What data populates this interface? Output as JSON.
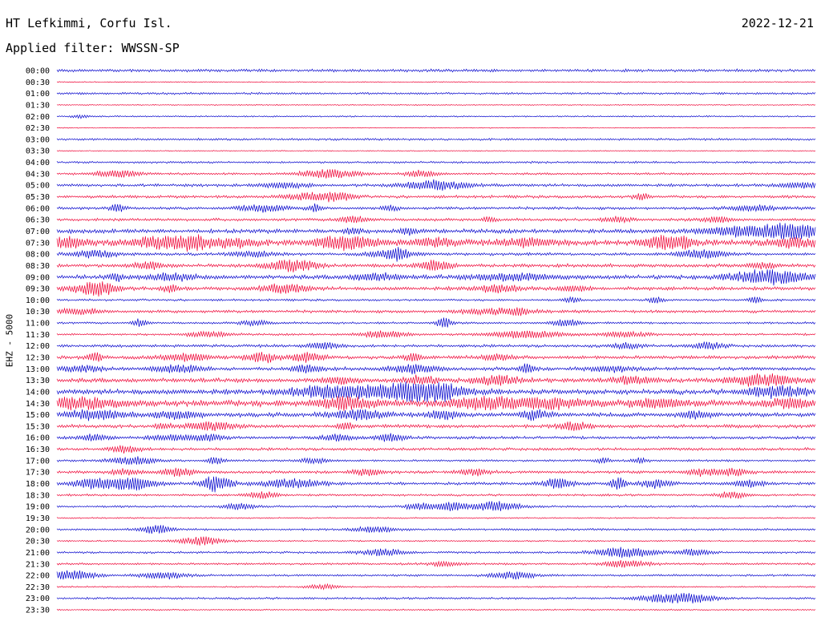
{
  "header": {
    "station": "HT Lefkimmi, Corfu Isl.",
    "date": "2022-12-21",
    "filter": "Applied filter: WWSSN-SP"
  },
  "chart_data": {
    "type": "line",
    "plot_kind": "helicorder",
    "channel_label": "EHZ - 5000",
    "row_colors": [
      "#0000cc",
      "#ee0033"
    ],
    "trace_times": [
      "00:00",
      "00:30",
      "01:00",
      "01:30",
      "02:00",
      "02:30",
      "03:00",
      "03:30",
      "04:00",
      "04:30",
      "05:00",
      "05:30",
      "06:00",
      "06:30",
      "07:00",
      "07:30",
      "08:00",
      "08:30",
      "09:00",
      "09:30",
      "10:00",
      "10:30",
      "11:00",
      "11:30",
      "12:00",
      "12:30",
      "13:00",
      "13:30",
      "14:00",
      "14:30",
      "15:00",
      "15:30",
      "16:00",
      "16:30",
      "17:00",
      "17:30",
      "18:00",
      "18:30",
      "19:00",
      "19:30",
      "20:00",
      "20:30",
      "21:00",
      "21:30",
      "22:00",
      "22:30",
      "23:00",
      "23:30"
    ],
    "noise_level": [
      2,
      0.6,
      1.5,
      0.7,
      1,
      0.6,
      1.5,
      0.6,
      1.5,
      1.5,
      2,
      2,
      2,
      2,
      3,
      4,
      2,
      2.5,
      3,
      2.5,
      1.5,
      2,
      1.5,
      1.5,
      2,
      2.5,
      2.5,
      3,
      3.5,
      4.5,
      3,
      2.5,
      2,
      2,
      1.5,
      2,
      2,
      1.5,
      1.5,
      1,
      1.5,
      1,
      1.5,
      1.5,
      1.5,
      1,
      1.5,
      1
    ],
    "events": [
      [],
      [],
      [],
      [],
      [
        [
          0.03,
          2,
          0.01
        ]
      ],
      [],
      [],
      [],
      [],
      [
        [
          0.08,
          4,
          0.03
        ],
        [
          0.36,
          5,
          0.04
        ],
        [
          0.48,
          4,
          0.02
        ]
      ],
      [
        [
          0.3,
          3,
          0.03
        ],
        [
          0.5,
          6,
          0.04
        ],
        [
          0.98,
          3,
          0.03
        ]
      ],
      [
        [
          0.33,
          4,
          0.03
        ],
        [
          0.37,
          5,
          0.02
        ],
        [
          0.77,
          4,
          0.01
        ]
      ],
      [
        [
          0.08,
          5,
          0.01
        ],
        [
          0.27,
          4,
          0.03
        ],
        [
          0.34,
          4,
          0.01
        ],
        [
          0.44,
          3,
          0.01
        ],
        [
          0.92,
          3,
          0.03
        ]
      ],
      [
        [
          0.39,
          4,
          0.02
        ],
        [
          0.57,
          3,
          0.01
        ],
        [
          0.74,
          3,
          0.02
        ],
        [
          0.87,
          3,
          0.02
        ]
      ],
      [
        [
          0.39,
          4,
          0.01
        ],
        [
          0.46,
          4,
          0.01
        ],
        [
          0.9,
          5,
          0.05
        ],
        [
          0.96,
          7,
          0.03
        ],
        [
          0.99,
          4,
          0.03
        ]
      ],
      [
        [
          0.01,
          5,
          0.03
        ],
        [
          0.14,
          6,
          0.04
        ],
        [
          0.18,
          6,
          0.02
        ],
        [
          0.23,
          5,
          0.03
        ],
        [
          0.38,
          7,
          0.04
        ],
        [
          0.5,
          4,
          0.03
        ],
        [
          0.62,
          5,
          0.03
        ],
        [
          0.79,
          6,
          0.02
        ],
        [
          0.82,
          7,
          0.02
        ],
        [
          0.97,
          5,
          0.03
        ]
      ],
      [
        [
          0.05,
          4,
          0.03
        ],
        [
          0.26,
          3,
          0.03
        ],
        [
          0.44,
          4,
          0.03
        ],
        [
          0.45,
          6,
          0.01
        ],
        [
          0.85,
          5,
          0.03
        ]
      ],
      [
        [
          0.12,
          4,
          0.02
        ],
        [
          0.31,
          7,
          0.03
        ],
        [
          0.5,
          6,
          0.02
        ],
        [
          0.93,
          3,
          0.02
        ]
      ],
      [
        [
          0.08,
          4,
          0.01
        ],
        [
          0.15,
          4,
          0.03
        ],
        [
          0.42,
          4,
          0.03
        ],
        [
          0.6,
          4,
          0.05
        ],
        [
          0.94,
          8,
          0.05
        ]
      ],
      [
        [
          0.04,
          4,
          0.03
        ],
        [
          0.06,
          6,
          0.02
        ],
        [
          0.15,
          4,
          0.01
        ],
        [
          0.3,
          5,
          0.03
        ],
        [
          0.58,
          4,
          0.03
        ],
        [
          0.68,
          3,
          0.02
        ]
      ],
      [
        [
          0.68,
          3,
          0.01
        ],
        [
          0.79,
          4,
          0.01
        ],
        [
          0.92,
          4,
          0.01
        ]
      ],
      [
        [
          0.03,
          3,
          0.03
        ],
        [
          0.58,
          3,
          0.05
        ],
        [
          0.61,
          3,
          0.01
        ]
      ],
      [
        [
          0.11,
          5,
          0.01
        ],
        [
          0.26,
          3,
          0.02
        ],
        [
          0.51,
          6,
          0.01
        ],
        [
          0.67,
          4,
          0.02
        ]
      ],
      [
        [
          0.2,
          3,
          0.03
        ],
        [
          0.43,
          4,
          0.03
        ],
        [
          0.62,
          4,
          0.05
        ],
        [
          0.75,
          3,
          0.03
        ]
      ],
      [
        [
          0.35,
          4,
          0.02
        ],
        [
          0.75,
          3,
          0.02
        ],
        [
          0.86,
          4,
          0.02
        ]
      ],
      [
        [
          0.05,
          6,
          0.01
        ],
        [
          0.17,
          4,
          0.03
        ],
        [
          0.27,
          6,
          0.02
        ],
        [
          0.33,
          5,
          0.02
        ],
        [
          0.47,
          5,
          0.01
        ],
        [
          0.58,
          3,
          0.02
        ]
      ],
      [
        [
          0.03,
          3,
          0.03
        ],
        [
          0.16,
          4,
          0.03
        ],
        [
          0.33,
          4,
          0.02
        ],
        [
          0.47,
          5,
          0.03
        ],
        [
          0.62,
          6,
          0.01
        ],
        [
          0.73,
          3,
          0.03
        ]
      ],
      [
        [
          0.37,
          4,
          0.02
        ],
        [
          0.48,
          5,
          0.02
        ],
        [
          0.58,
          5,
          0.03
        ],
        [
          0.76,
          4,
          0.03
        ],
        [
          0.93,
          7,
          0.04
        ]
      ],
      [
        [
          0.36,
          7,
          0.05
        ],
        [
          0.47,
          12,
          0.06
        ],
        [
          0.5,
          6,
          0.02
        ],
        [
          0.95,
          6,
          0.04
        ]
      ],
      [
        [
          0.03,
          5,
          0.05
        ],
        [
          0.38,
          6,
          0.04
        ],
        [
          0.55,
          5,
          0.04
        ],
        [
          0.63,
          6,
          0.06
        ],
        [
          0.79,
          5,
          0.03
        ],
        [
          0.97,
          5,
          0.03
        ]
      ],
      [
        [
          0.05,
          5,
          0.04
        ],
        [
          0.16,
          4,
          0.03
        ],
        [
          0.4,
          5,
          0.04
        ],
        [
          0.51,
          5,
          0.02
        ],
        [
          0.63,
          5,
          0.02
        ],
        [
          0.84,
          4,
          0.02
        ]
      ],
      [
        [
          0.14,
          3,
          0.01
        ],
        [
          0.2,
          5,
          0.03
        ],
        [
          0.38,
          4,
          0.01
        ],
        [
          0.68,
          5,
          0.02
        ]
      ],
      [
        [
          0.05,
          4,
          0.02
        ],
        [
          0.15,
          3,
          0.03
        ],
        [
          0.2,
          4,
          0.02
        ],
        [
          0.37,
          4,
          0.02
        ],
        [
          0.44,
          4,
          0.02
        ]
      ],
      [
        [
          0.09,
          4,
          0.02
        ]
      ],
      [
        [
          0.1,
          5,
          0.03
        ],
        [
          0.21,
          5,
          0.01
        ],
        [
          0.34,
          3,
          0.02
        ],
        [
          0.72,
          3,
          0.01
        ],
        [
          0.77,
          3,
          0.01
        ]
      ],
      [
        [
          0.09,
          3,
          0.02
        ],
        [
          0.16,
          5,
          0.02
        ],
        [
          0.41,
          4,
          0.02
        ],
        [
          0.55,
          4,
          0.02
        ],
        [
          0.85,
          4,
          0.02
        ],
        [
          0.89,
          4,
          0.02
        ]
      ],
      [
        [
          0.05,
          6,
          0.03
        ],
        [
          0.1,
          7,
          0.03
        ],
        [
          0.21,
          10,
          0.02
        ],
        [
          0.31,
          5,
          0.04
        ],
        [
          0.66,
          6,
          0.02
        ],
        [
          0.74,
          7,
          0.01
        ],
        [
          0.79,
          5,
          0.02
        ],
        [
          0.91,
          4,
          0.02
        ]
      ],
      [
        [
          0.27,
          4,
          0.02
        ],
        [
          0.89,
          4,
          0.02
        ]
      ],
      [
        [
          0.24,
          4,
          0.02
        ],
        [
          0.48,
          4,
          0.02
        ],
        [
          0.52,
          5,
          0.02
        ],
        [
          0.58,
          6,
          0.03
        ]
      ],
      [],
      [
        [
          0.13,
          5,
          0.02
        ],
        [
          0.42,
          3,
          0.03
        ]
      ],
      [
        [
          0.19,
          5,
          0.03
        ]
      ],
      [
        [
          0.43,
          4,
          0.03
        ],
        [
          0.75,
          6,
          0.04
        ],
        [
          0.84,
          4,
          0.02
        ]
      ],
      [
        [
          0.51,
          3,
          0.02
        ],
        [
          0.75,
          4,
          0.03
        ]
      ],
      [
        [
          0.02,
          6,
          0.03
        ],
        [
          0.14,
          4,
          0.03
        ],
        [
          0.6,
          4,
          0.03
        ]
      ],
      [
        [
          0.35,
          3,
          0.02
        ]
      ],
      [
        [
          0.8,
          4,
          0.04
        ],
        [
          0.84,
          4,
          0.03
        ]
      ],
      []
    ]
  }
}
